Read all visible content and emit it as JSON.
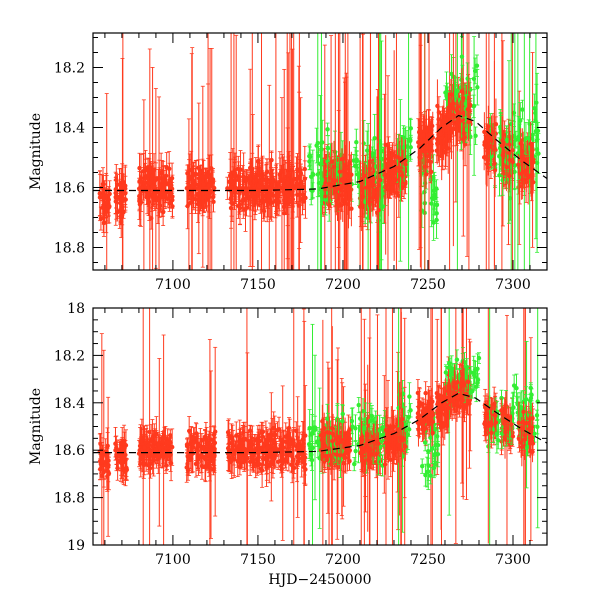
{
  "chart_data": [
    {
      "type": "scatter",
      "title": "",
      "xlabel": "",
      "ylabel": "Magnitude",
      "xlim": [
        7053,
        7320
      ],
      "ylim": [
        18.875,
        18.085
      ],
      "y_inverted": true,
      "grid": false,
      "legend": "none",
      "x_ticks": [
        7100,
        7150,
        7200,
        7250,
        7300
      ],
      "y_ticks": [
        18.2,
        18.4,
        18.6,
        18.8
      ],
      "y_tick_labels": [
        "18.2",
        "18.4",
        "18.6",
        "18.8"
      ],
      "x_tick_labels_shown": true,
      "series": [
        {
          "kind": "model-curve",
          "color": "#000000",
          "style": "dashed",
          "x": [
            7053,
            7100,
            7150,
            7185,
            7210,
            7230,
            7245,
            7258,
            7268,
            7278,
            7290,
            7305,
            7320
          ],
          "y": [
            18.61,
            18.61,
            18.61,
            18.605,
            18.58,
            18.53,
            18.47,
            18.4,
            18.36,
            18.38,
            18.44,
            18.51,
            18.57
          ]
        },
        {
          "kind": "photometry",
          "color": "#ff3a1e",
          "segments": [
            [
              7057,
              7063,
              18.64
            ],
            [
              7066,
              7073,
              18.63
            ],
            [
              7080,
              7100,
              18.6
            ],
            [
              7108,
              7125,
              18.6
            ],
            [
              7132,
              7150,
              18.6
            ],
            [
              7150,
              7178,
              18.6
            ],
            [
              7187,
              7205,
              18.58
            ],
            [
              7210,
              7222,
              18.6
            ],
            [
              7224,
              7237,
              18.55
            ],
            [
              7244,
              7253,
              18.45
            ],
            [
              7255,
              7262,
              18.42
            ],
            [
              7262,
              7275,
              18.36
            ],
            [
              7283,
              7290,
              18.46
            ],
            [
              7293,
              7300,
              18.5
            ],
            [
              7303,
              7312,
              18.52
            ]
          ]
        },
        {
          "kind": "photometry",
          "color": "#33ee33",
          "segments": [
            [
              7180,
              7200,
              18.55
            ],
            [
              7205,
              7225,
              18.55
            ],
            [
              7232,
              7240,
              18.5
            ],
            [
              7246,
              7256,
              18.62
            ],
            [
              7260,
              7280,
              18.3
            ],
            [
              7285,
              7300,
              18.5
            ],
            [
              7300,
              7315,
              18.45
            ]
          ]
        }
      ]
    },
    {
      "type": "scatter",
      "title": "",
      "xlabel": "HJD−2450000",
      "ylabel": "Magnitude",
      "xlim": [
        7053,
        7320
      ],
      "ylim": [
        19.0,
        18.0
      ],
      "y_inverted": true,
      "grid": false,
      "legend": "none",
      "x_ticks": [
        7100,
        7150,
        7200,
        7250,
        7300
      ],
      "y_ticks": [
        18.0,
        18.2,
        18.4,
        18.6,
        18.8,
        19.0
      ],
      "y_tick_labels": [
        "18",
        "18.2",
        "18.4",
        "18.6",
        "18.8",
        "19"
      ],
      "x_tick_labels_shown": true,
      "series": [
        {
          "kind": "model-curve",
          "color": "#000000",
          "style": "dashed",
          "x": [
            7053,
            7100,
            7150,
            7185,
            7210,
            7230,
            7245,
            7258,
            7268,
            7278,
            7290,
            7305,
            7320
          ],
          "y": [
            18.61,
            18.61,
            18.61,
            18.605,
            18.58,
            18.53,
            18.47,
            18.4,
            18.36,
            18.38,
            18.44,
            18.51,
            18.57
          ]
        },
        {
          "kind": "photometry",
          "color": "#ff3a1e",
          "segments": [
            [
              7057,
              7063,
              18.64
            ],
            [
              7066,
              7073,
              18.63
            ],
            [
              7080,
              7100,
              18.6
            ],
            [
              7108,
              7125,
              18.6
            ],
            [
              7132,
              7150,
              18.6
            ],
            [
              7150,
              7178,
              18.6
            ],
            [
              7187,
              7205,
              18.58
            ],
            [
              7210,
              7222,
              18.6
            ],
            [
              7224,
              7237,
              18.55
            ],
            [
              7244,
              7253,
              18.45
            ],
            [
              7255,
              7262,
              18.42
            ],
            [
              7262,
              7275,
              18.36
            ],
            [
              7283,
              7290,
              18.46
            ],
            [
              7293,
              7300,
              18.5
            ],
            [
              7303,
              7312,
              18.52
            ]
          ]
        },
        {
          "kind": "photometry",
          "color": "#33ee33",
          "segments": [
            [
              7180,
              7200,
              18.55
            ],
            [
              7205,
              7225,
              18.55
            ],
            [
              7232,
              7240,
              18.5
            ],
            [
              7246,
              7256,
              18.62
            ],
            [
              7260,
              7280,
              18.3
            ],
            [
              7285,
              7300,
              18.5
            ],
            [
              7300,
              7315,
              18.45
            ]
          ]
        }
      ]
    }
  ]
}
